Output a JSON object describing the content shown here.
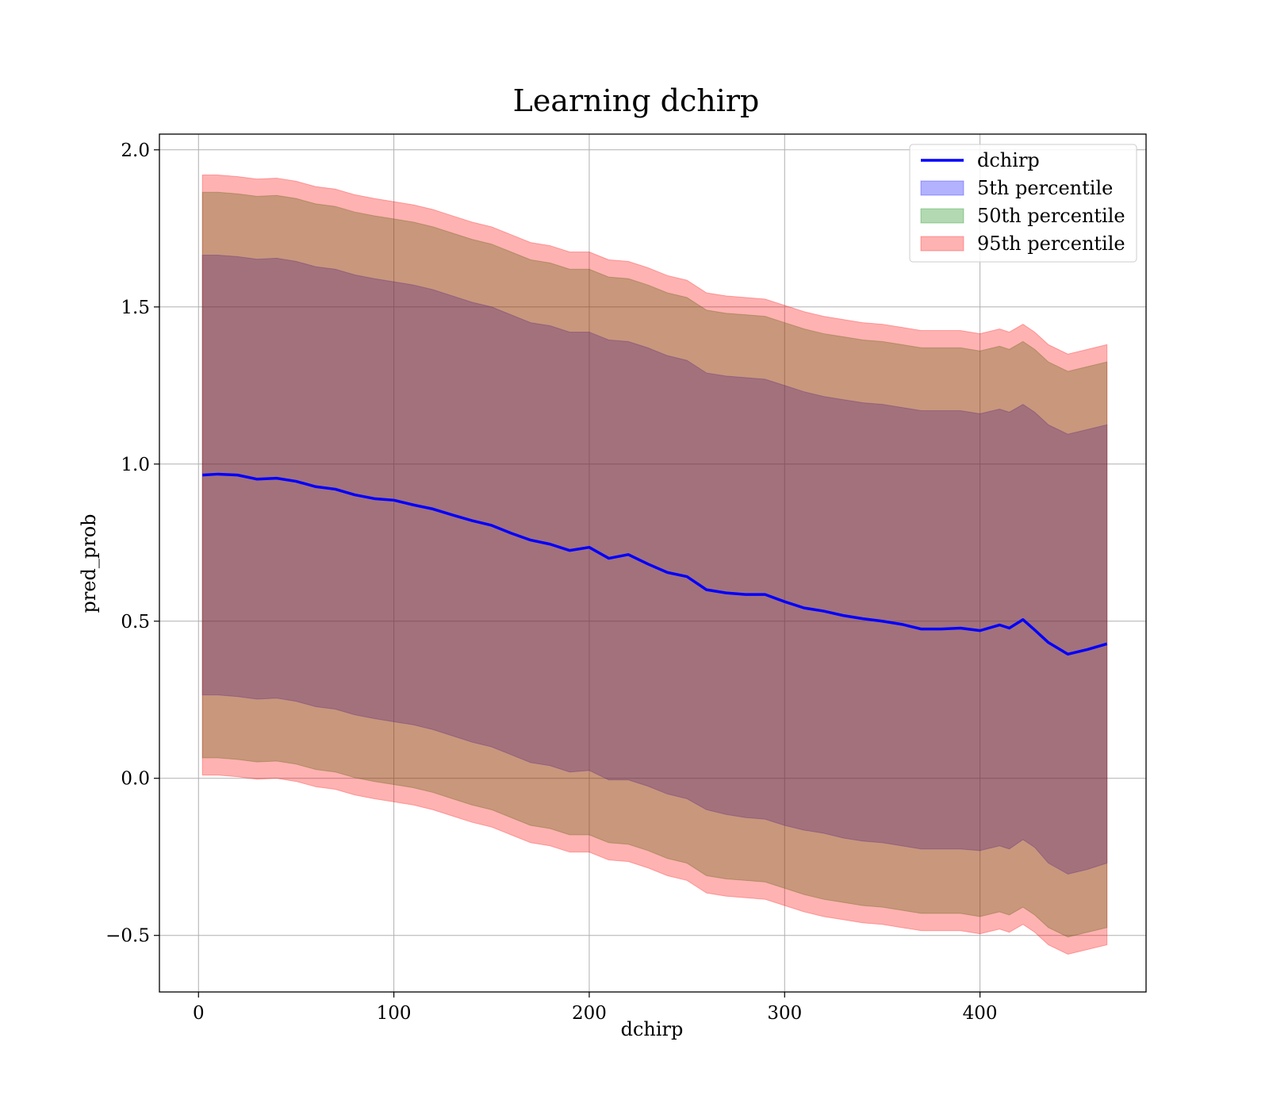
{
  "chart_data": {
    "type": "area",
    "title": "Learning dchirp",
    "xlabel": "dchirp",
    "ylabel": "pred_prob",
    "xlim": [
      -20,
      485
    ],
    "ylim": [
      -0.68,
      2.05
    ],
    "xticks": [
      0,
      100,
      200,
      300,
      400
    ],
    "yticks": [
      -0.5,
      0.0,
      0.5,
      1.0,
      1.5,
      2.0
    ],
    "xtick_labels": [
      "0",
      "100",
      "200",
      "300",
      "400"
    ],
    "ytick_labels": [
      "−0.5",
      "0.0",
      "0.5",
      "1.0",
      "1.5",
      "2.0"
    ],
    "grid": true,
    "legend_position": "top-right",
    "x": [
      2,
      10,
      20,
      30,
      40,
      50,
      60,
      70,
      80,
      90,
      100,
      110,
      120,
      130,
      140,
      150,
      160,
      170,
      180,
      190,
      200,
      210,
      220,
      230,
      240,
      250,
      260,
      270,
      280,
      290,
      300,
      310,
      320,
      330,
      340,
      350,
      360,
      370,
      380,
      390,
      400,
      410,
      415,
      422,
      428,
      435,
      445,
      455,
      465
    ],
    "series": [
      {
        "name": "dchirp",
        "kind": "line",
        "color": "#0000ff",
        "values": [
          0.965,
          0.968,
          0.965,
          0.952,
          0.955,
          0.945,
          0.928,
          0.92,
          0.902,
          0.89,
          0.885,
          0.87,
          0.857,
          0.838,
          0.82,
          0.805,
          0.78,
          0.758,
          0.745,
          0.725,
          0.735,
          0.7,
          0.712,
          0.682,
          0.655,
          0.642,
          0.6,
          0.59,
          0.585,
          0.585,
          0.562,
          0.542,
          0.532,
          0.518,
          0.508,
          0.5,
          0.49,
          0.475,
          0.475,
          0.478,
          0.47,
          0.488,
          0.478,
          0.505,
          0.472,
          0.432,
          0.395,
          0.41,
          0.428
        ]
      },
      {
        "name": "5th percentile",
        "kind": "band",
        "color": "#0000ff",
        "lower": [
          0.265,
          0.265,
          0.26,
          0.252,
          0.255,
          0.245,
          0.228,
          0.22,
          0.202,
          0.19,
          0.18,
          0.17,
          0.155,
          0.135,
          0.115,
          0.1,
          0.075,
          0.05,
          0.04,
          0.02,
          0.025,
          -0.005,
          -0.005,
          -0.025,
          -0.05,
          -0.065,
          -0.1,
          -0.115,
          -0.125,
          -0.13,
          -0.15,
          -0.165,
          -0.175,
          -0.19,
          -0.2,
          -0.205,
          -0.215,
          -0.225,
          -0.225,
          -0.225,
          -0.23,
          -0.215,
          -0.225,
          -0.195,
          -0.22,
          -0.27,
          -0.305,
          -0.29,
          -0.27
        ],
        "upper": [
          1.665,
          1.665,
          1.66,
          1.652,
          1.655,
          1.645,
          1.628,
          1.62,
          1.602,
          1.59,
          1.58,
          1.57,
          1.555,
          1.535,
          1.515,
          1.5,
          1.475,
          1.45,
          1.44,
          1.42,
          1.42,
          1.395,
          1.39,
          1.37,
          1.345,
          1.33,
          1.29,
          1.28,
          1.275,
          1.27,
          1.25,
          1.23,
          1.215,
          1.205,
          1.195,
          1.19,
          1.18,
          1.17,
          1.17,
          1.17,
          1.16,
          1.175,
          1.165,
          1.19,
          1.165,
          1.125,
          1.095,
          1.11,
          1.125
        ]
      },
      {
        "name": "50th percentile",
        "kind": "band",
        "color": "#008000",
        "lower": [
          0.065,
          0.065,
          0.06,
          0.052,
          0.055,
          0.045,
          0.028,
          0.02,
          0.002,
          -0.01,
          -0.02,
          -0.03,
          -0.045,
          -0.065,
          -0.085,
          -0.1,
          -0.125,
          -0.15,
          -0.16,
          -0.18,
          -0.18,
          -0.205,
          -0.21,
          -0.23,
          -0.255,
          -0.27,
          -0.31,
          -0.32,
          -0.325,
          -0.33,
          -0.35,
          -0.37,
          -0.385,
          -0.395,
          -0.405,
          -0.41,
          -0.42,
          -0.43,
          -0.43,
          -0.43,
          -0.44,
          -0.425,
          -0.435,
          -0.41,
          -0.435,
          -0.475,
          -0.505,
          -0.49,
          -0.475
        ],
        "upper": [
          1.865,
          1.865,
          1.86,
          1.852,
          1.855,
          1.845,
          1.828,
          1.82,
          1.802,
          1.79,
          1.78,
          1.77,
          1.755,
          1.735,
          1.715,
          1.7,
          1.675,
          1.65,
          1.64,
          1.62,
          1.62,
          1.595,
          1.59,
          1.57,
          1.545,
          1.53,
          1.49,
          1.48,
          1.475,
          1.47,
          1.45,
          1.43,
          1.415,
          1.405,
          1.395,
          1.39,
          1.38,
          1.37,
          1.37,
          1.37,
          1.36,
          1.375,
          1.365,
          1.39,
          1.365,
          1.325,
          1.295,
          1.31,
          1.325
        ]
      },
      {
        "name": "95th percentile",
        "kind": "band",
        "color": "#ff0000",
        "lower": [
          0.01,
          0.01,
          0.005,
          -0.003,
          0.0,
          -0.01,
          -0.027,
          -0.035,
          -0.053,
          -0.065,
          -0.075,
          -0.085,
          -0.1,
          -0.12,
          -0.14,
          -0.155,
          -0.18,
          -0.205,
          -0.215,
          -0.235,
          -0.235,
          -0.26,
          -0.265,
          -0.285,
          -0.31,
          -0.325,
          -0.365,
          -0.375,
          -0.38,
          -0.385,
          -0.405,
          -0.425,
          -0.44,
          -0.45,
          -0.46,
          -0.465,
          -0.475,
          -0.485,
          -0.485,
          -0.485,
          -0.495,
          -0.48,
          -0.49,
          -0.465,
          -0.49,
          -0.53,
          -0.56,
          -0.545,
          -0.53
        ],
        "upper": [
          1.92,
          1.92,
          1.915,
          1.907,
          1.91,
          1.9,
          1.883,
          1.875,
          1.857,
          1.845,
          1.835,
          1.825,
          1.81,
          1.79,
          1.77,
          1.755,
          1.73,
          1.705,
          1.695,
          1.675,
          1.675,
          1.65,
          1.645,
          1.625,
          1.6,
          1.585,
          1.545,
          1.535,
          1.53,
          1.525,
          1.505,
          1.485,
          1.47,
          1.46,
          1.45,
          1.445,
          1.435,
          1.425,
          1.425,
          1.425,
          1.415,
          1.43,
          1.42,
          1.445,
          1.42,
          1.38,
          1.35,
          1.365,
          1.38
        ]
      }
    ]
  }
}
